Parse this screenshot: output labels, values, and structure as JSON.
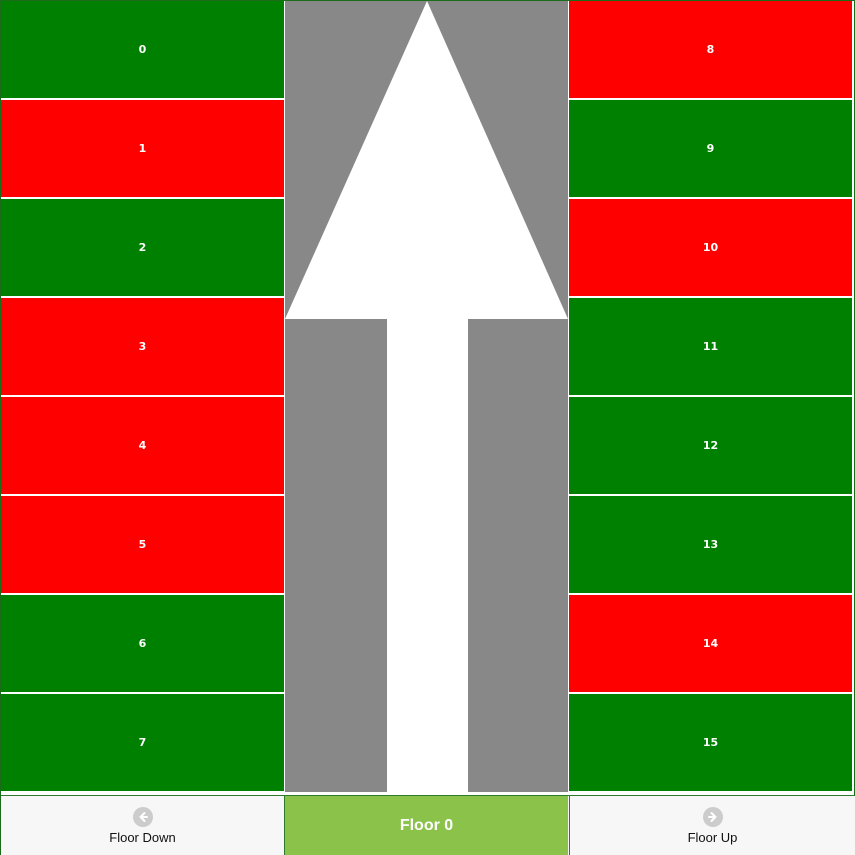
{
  "colors": {
    "free": "#008000",
    "taken": "#ff0000",
    "lane": "#888888",
    "floor_label_bg": "#8bc34a"
  },
  "spots_left": [
    {
      "id": "0",
      "status": "free"
    },
    {
      "id": "1",
      "status": "taken"
    },
    {
      "id": "2",
      "status": "free"
    },
    {
      "id": "3",
      "status": "taken"
    },
    {
      "id": "4",
      "status": "taken"
    },
    {
      "id": "5",
      "status": "taken"
    },
    {
      "id": "6",
      "status": "free"
    },
    {
      "id": "7",
      "status": "free"
    }
  ],
  "spots_right": [
    {
      "id": "8",
      "status": "taken"
    },
    {
      "id": "9",
      "status": "free"
    },
    {
      "id": "10",
      "status": "taken"
    },
    {
      "id": "11",
      "status": "free"
    },
    {
      "id": "12",
      "status": "free"
    },
    {
      "id": "13",
      "status": "free"
    },
    {
      "id": "14",
      "status": "taken"
    },
    {
      "id": "15",
      "status": "free"
    }
  ],
  "lane": {
    "direction_icon": "up-arrow-icon"
  },
  "footer": {
    "floor_down_label": "Floor Down",
    "floor_down_icon": "arrow-left-circle-icon",
    "current_floor_label": "Floor 0",
    "floor_up_label": "Floor Up",
    "floor_up_icon": "arrow-right-circle-icon"
  }
}
